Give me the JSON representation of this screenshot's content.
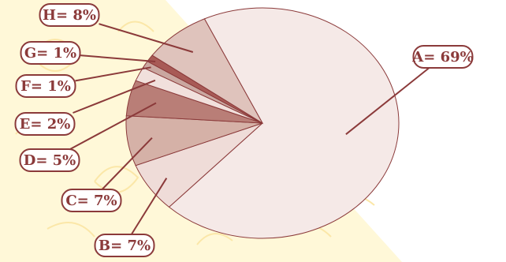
{
  "chart_data": {
    "type": "pie",
    "slices": [
      {
        "key": "A",
        "label": "A= 69%",
        "value": 69,
        "color": "#f5e9e7"
      },
      {
        "key": "B",
        "label": "B= 7%",
        "value": 7,
        "color": "#efdcd8"
      },
      {
        "key": "C",
        "label": "C= 7%",
        "value": 7,
        "color": "#d5b1a7"
      },
      {
        "key": "D",
        "label": "D= 5%",
        "value": 5,
        "color": "#b97e77"
      },
      {
        "key": "E",
        "label": "E= 2%",
        "value": 2,
        "color": "#f1e0dc"
      },
      {
        "key": "F",
        "label": "F= 1%",
        "value": 1,
        "color": "#caa7a0"
      },
      {
        "key": "G",
        "label": "G= 1%",
        "value": 1,
        "color": "#a85a56"
      },
      {
        "key": "H",
        "label": "H= 8%",
        "value": 8,
        "color": "#dfc3bc"
      }
    ]
  },
  "colors": {
    "stroke": "#8b3a3a",
    "label_fill": "#ffffff",
    "text": "#8b3a3a",
    "background_pale": "#fff8d8",
    "background_pattern": "#fbe7a8"
  }
}
